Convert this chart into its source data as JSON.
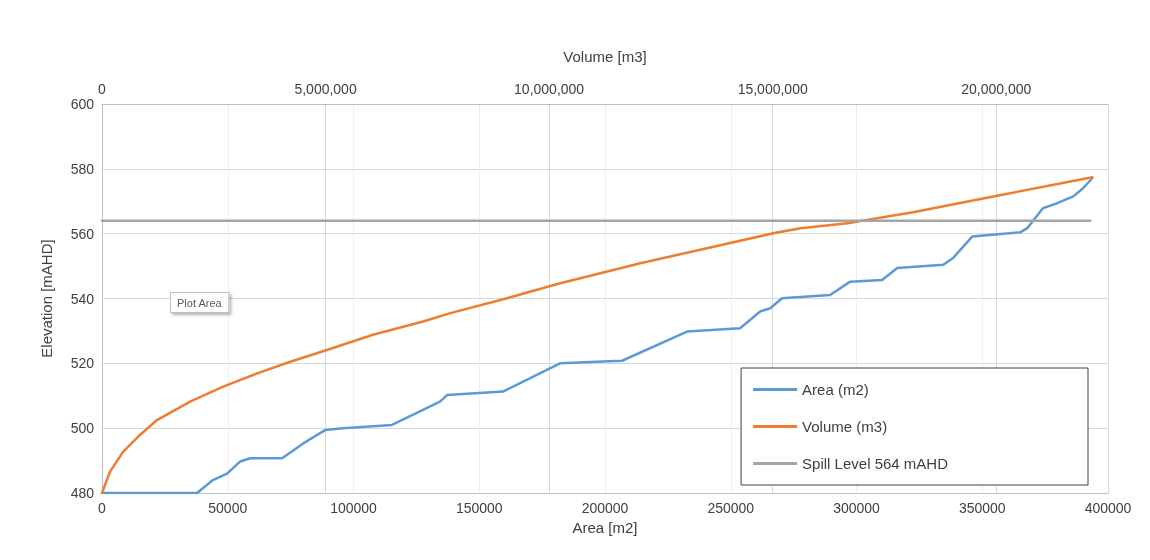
{
  "chart_data": {
    "type": "line",
    "xlabel": "Area [m2]",
    "x2label": "Volume [m3]",
    "ylabel": "Elevation [mAHD]",
    "xlim": [
      0,
      400000
    ],
    "xticks": [
      0,
      50000,
      100000,
      150000,
      200000,
      250000,
      300000,
      350000,
      400000
    ],
    "x2lim": [
      0,
      22500000
    ],
    "x2ticks": [
      0,
      {
        "value": 5000000,
        "label": "5,000,000"
      },
      {
        "value": 10000000,
        "label": "10,000,000"
      },
      {
        "value": 15000000,
        "label": "15,000,000"
      },
      {
        "value": 20000000,
        "label": "20,000,000"
      }
    ],
    "ylim": [
      480,
      600
    ],
    "yticks": [
      480,
      500,
      520,
      540,
      560,
      580,
      600
    ],
    "grid": true,
    "legend": "bottom right",
    "marker": "none",
    "line_style": "solid",
    "annotations": [
      "Plot Area"
    ],
    "series": [
      {
        "name": "Area (m2)",
        "color": "#5b9bd5",
        "x": [
          0,
          37800,
          44100,
          49700,
          54900,
          58900,
          71600,
          80000,
          88700,
          95800,
          115300,
          134400,
          137200,
          159500,
          182100,
          206800,
          232600,
          253700,
          261700,
          265700,
          270400,
          289500,
          297500,
          310200,
          316200,
          334500,
          338400,
          346000,
          365100,
          367900,
          374200,
          379800,
          386200,
          390100,
          393700
        ],
        "values": [
          480,
          480,
          484,
          486,
          489.7,
          490.7,
          490.7,
          495.3,
          499.4,
          500,
          501,
          508.2,
          510.2,
          511.3,
          520,
          520.8,
          529.8,
          530.8,
          536,
          537,
          540.1,
          541.1,
          545.2,
          545.7,
          549.4,
          550.4,
          552.5,
          559.1,
          560.4,
          561.7,
          567.9,
          569.4,
          571.5,
          574,
          577.1
        ]
      },
      {
        "name": "Volume (m3)",
        "color": "#ed7d31",
        "axis": "x2",
        "x": [
          0,
          179000,
          470000,
          850000,
          1230000,
          1970000,
          2710000,
          3470000,
          4210000,
          5030000,
          6060000,
          7180000,
          7790000,
          9060000,
          10250000,
          12040000,
          13530000,
          15010000,
          15620000,
          16670000,
          18140000,
          20020000,
          22150000
        ],
        "values": [
          480,
          486.6,
          492.7,
          497.9,
          502.5,
          508.2,
          512.8,
          516.9,
          520.5,
          524.1,
          528.8,
          532.9,
          535.5,
          540.1,
          544.7,
          550.9,
          555.5,
          560.1,
          561.7,
          563.2,
          566.6,
          571.7,
          577.4
        ]
      },
      {
        "name": "Spill Level 564 mAHD",
        "color": "#a5a5a5",
        "x": [
          0,
          393000
        ],
        "values": [
          564,
          564
        ]
      }
    ]
  }
}
